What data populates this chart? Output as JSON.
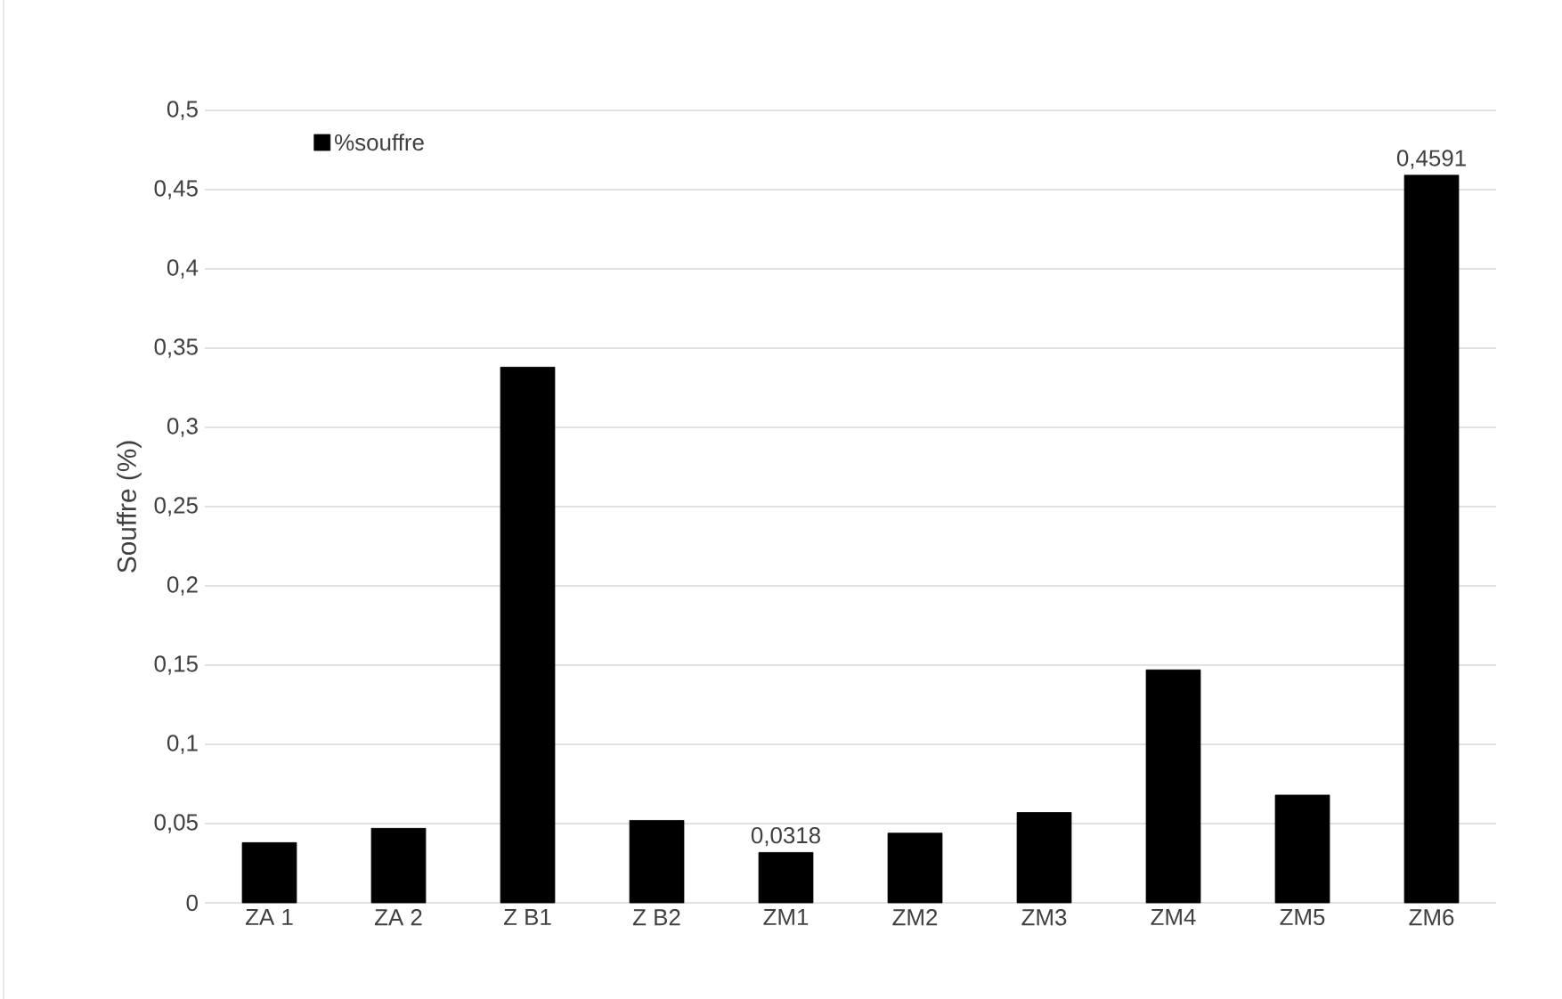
{
  "chart_data": {
    "type": "bar",
    "ylabel": "Souffre (%)",
    "categories": [
      "ZA 1",
      "ZA 2",
      "Z B1",
      "Z B2",
      "ZM1",
      "ZM2",
      "ZM3",
      "ZM4",
      "ZM5",
      "ZM6"
    ],
    "series": [
      {
        "name": "%souffre",
        "color": "#000000",
        "values": [
          0.038,
          0.047,
          0.338,
          0.052,
          0.0318,
          0.044,
          0.057,
          0.147,
          0.068,
          0.4591
        ],
        "value_labels": [
          null,
          null,
          null,
          null,
          "0,0318",
          null,
          null,
          null,
          null,
          "0,4591"
        ]
      }
    ],
    "ylim": [
      0,
      0.5
    ],
    "yticks": [
      0,
      {
        "value": 0.05,
        "label": "0,05"
      },
      {
        "value": 0.1,
        "label": "0,1"
      },
      {
        "value": 0.15,
        "label": "0,15"
      },
      {
        "value": 0.2,
        "label": "0,2"
      },
      {
        "value": 0.25,
        "label": "0,25"
      },
      {
        "value": 0.3,
        "label": "0,3"
      },
      {
        "value": 0.35,
        "label": "0,35"
      },
      {
        "value": 0.4,
        "label": "0,4"
      },
      {
        "value": 0.45,
        "label": "0,45"
      },
      {
        "value": 0.5,
        "label": "0,5"
      }
    ],
    "grid": "y",
    "legend": "top left"
  }
}
